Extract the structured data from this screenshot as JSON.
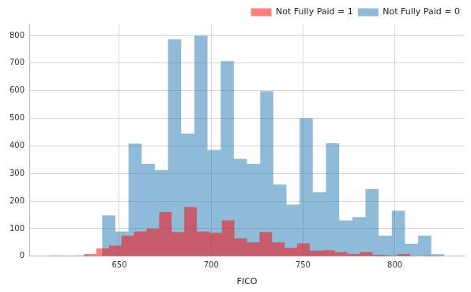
{
  "chart_data": {
    "type": "histogram",
    "x_label": "FICO",
    "series": [
      {
        "name": "Not Fully Paid = 1",
        "color": "#ff0000",
        "bins": [
          617,
          623.83,
          630.67,
          637.5,
          644.33,
          651.17,
          658,
          664.83,
          671.67,
          678.5,
          685.33,
          692.17,
          699,
          705.83,
          712.67,
          719.5,
          726.33,
          733.17,
          740,
          746.83,
          753.67,
          760.5,
          767.33,
          774.17,
          781,
          787.83,
          794.67,
          801.5,
          808.33,
          815.17,
          822
        ],
        "values": [
          1,
          0,
          8,
          28,
          38,
          75,
          90,
          100,
          160,
          88,
          178,
          90,
          85,
          130,
          65,
          50,
          88,
          50,
          30,
          47,
          20,
          22,
          15,
          8,
          15,
          5,
          3,
          8,
          0,
          2
        ]
      },
      {
        "name": "Not Fully Paid = 0",
        "color": "#1f77b4",
        "bins": [
          612,
          619.17,
          626.33,
          633.5,
          640.67,
          647.83,
          655,
          662.17,
          669.33,
          676.5,
          683.67,
          690.83,
          698,
          705.17,
          712.33,
          719.5,
          726.67,
          733.83,
          741,
          748.17,
          755.33,
          762.5,
          769.67,
          776.83,
          784,
          791.17,
          798.33,
          805.5,
          812.67,
          819.83,
          827
        ],
        "values": [
          3,
          2,
          3,
          0,
          148,
          90,
          408,
          335,
          312,
          787,
          445,
          800,
          385,
          707,
          353,
          335,
          598,
          260,
          187,
          500,
          232,
          410,
          130,
          142,
          243,
          75,
          165,
          45,
          75,
          7
        ]
      }
    ],
    "xlim": [
      601,
      838
    ],
    "xticks": [
      650,
      700,
      750,
      800
    ],
    "ylim": [
      0,
      840
    ],
    "yticks": [
      0,
      100,
      200,
      300,
      400,
      500,
      600,
      700,
      800
    ],
    "grid": true,
    "legend": "upper right"
  }
}
